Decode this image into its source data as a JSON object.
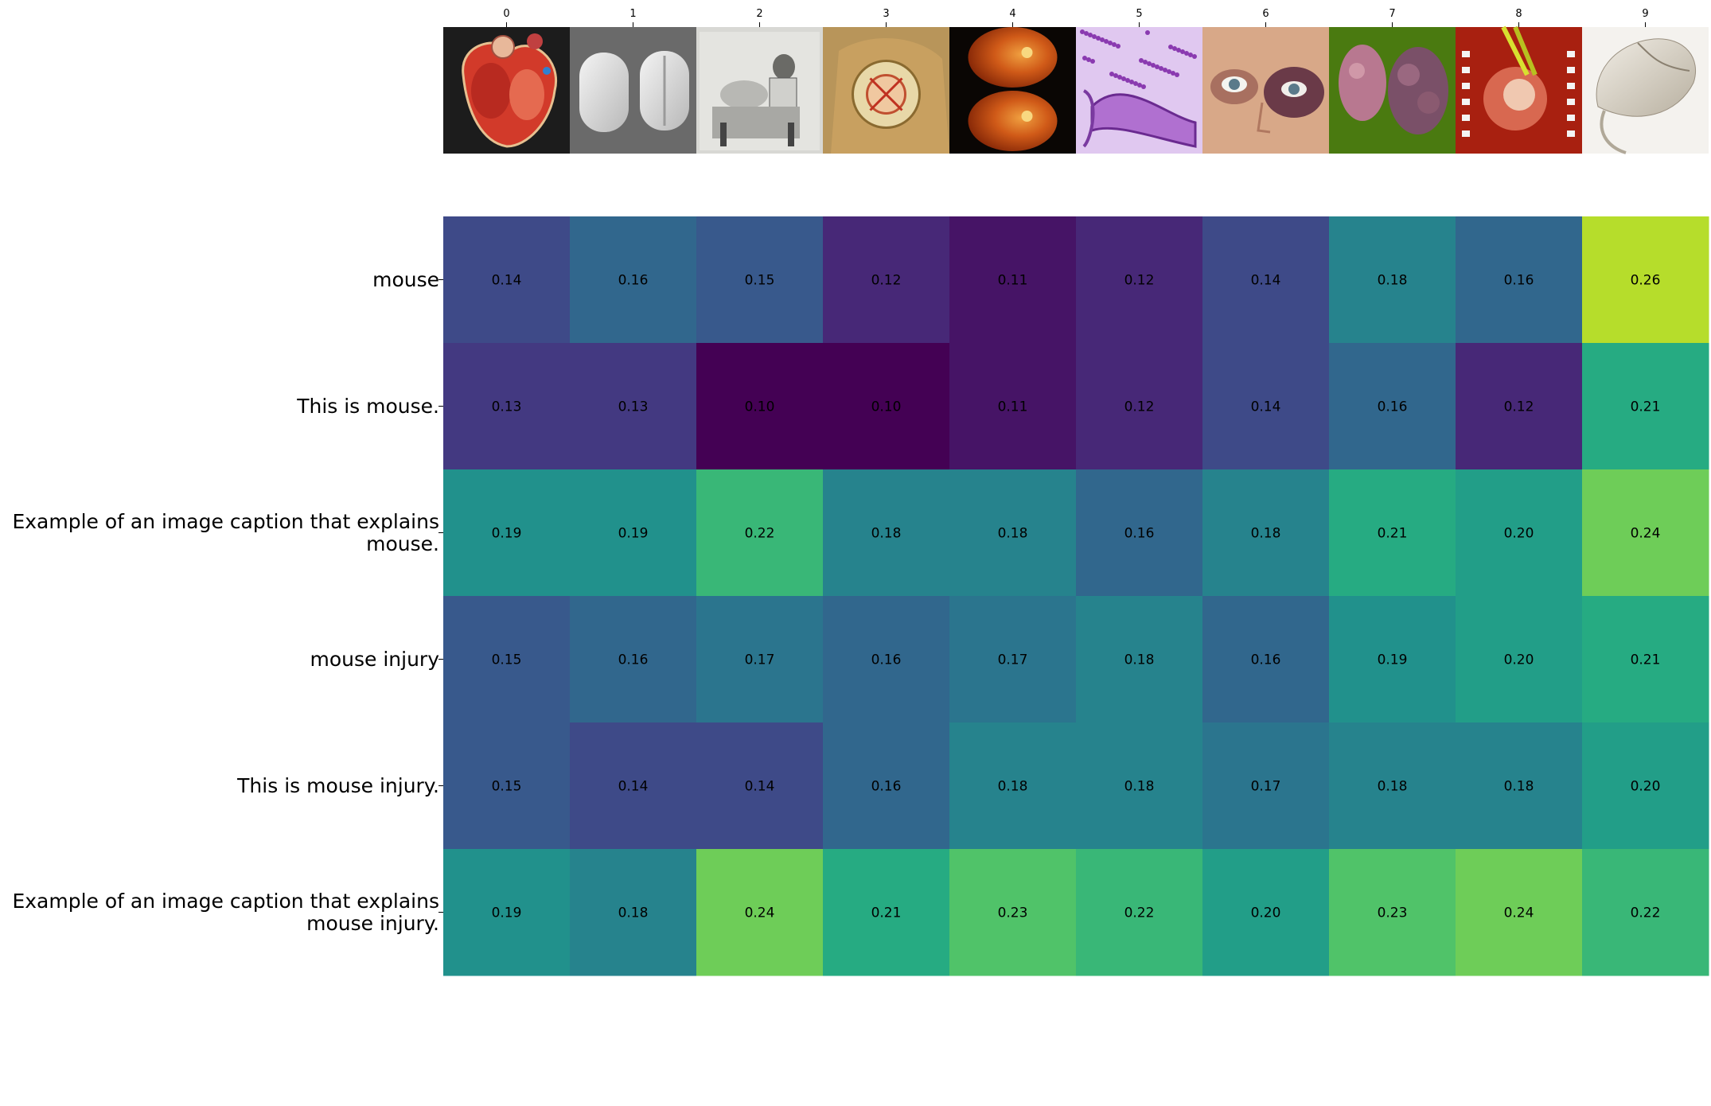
{
  "chart_data": {
    "type": "heatmap",
    "x_tick_labels": [
      "0",
      "1",
      "2",
      "3",
      "4",
      "5",
      "6",
      "7",
      "8",
      "9"
    ],
    "thumbnail_icons": [
      "heart-anatomy-illustration",
      "vicodin-pills-photo",
      "surgery-vintage-photo",
      "ear-anatomy-illustration",
      "retina-fundus-photos",
      "histology-slide-stain",
      "bruised-eye-face-photo",
      "tissue-specimens-photo",
      "open-surgery-photo",
      "computer-mouse-photo"
    ],
    "thumbnail_colors": [
      "#1c1c1c",
      "#7a7a7a",
      "#d8d8d4",
      "#b8955a",
      "#0a0604",
      "#d8b8e8",
      "#cfa080",
      "#4a7a10",
      "#b82818",
      "#f4f2ee"
    ],
    "rows": [
      "mouse",
      "This is mouse.",
      "Example of an image caption that explains mouse.",
      "mouse injury",
      "This is mouse injury.",
      "Example of an image caption that explains mouse injury."
    ],
    "row_label_lines": [
      [
        "mouse"
      ],
      [
        "This is mouse."
      ],
      [
        "Example of an image caption that explains",
        "mouse."
      ],
      [
        "mouse injury"
      ],
      [
        "This is mouse injury."
      ],
      [
        "Example of an image caption that explains",
        "mouse injury."
      ]
    ],
    "values": [
      [
        0.14,
        0.16,
        0.15,
        0.12,
        0.11,
        0.12,
        0.14,
        0.18,
        0.16,
        0.26
      ],
      [
        0.13,
        0.13,
        0.1,
        0.1,
        0.11,
        0.12,
        0.14,
        0.16,
        0.12,
        0.21
      ],
      [
        0.19,
        0.19,
        0.22,
        0.18,
        0.18,
        0.16,
        0.18,
        0.21,
        0.2,
        0.24
      ],
      [
        0.15,
        0.16,
        0.17,
        0.16,
        0.17,
        0.18,
        0.16,
        0.19,
        0.2,
        0.21
      ],
      [
        0.15,
        0.14,
        0.14,
        0.16,
        0.18,
        0.18,
        0.17,
        0.18,
        0.18,
        0.2
      ],
      [
        0.19,
        0.18,
        0.24,
        0.21,
        0.23,
        0.22,
        0.2,
        0.23,
        0.24,
        0.22
      ]
    ],
    "colormap": "viridis",
    "color_range": [
      0.1,
      0.28
    ],
    "annotations": true,
    "colorbar": false
  }
}
